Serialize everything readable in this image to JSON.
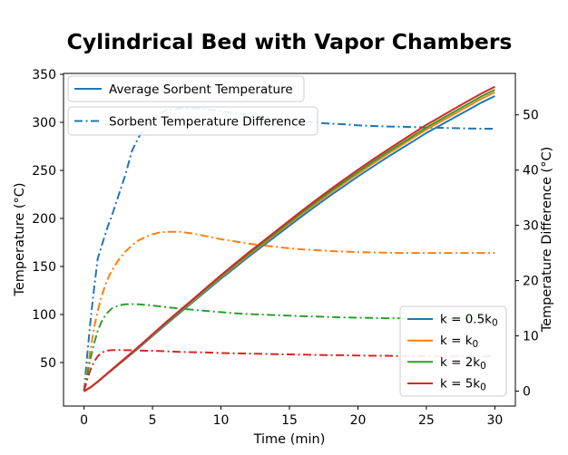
{
  "chart_data": {
    "type": "line",
    "title": "Cylindrical Bed with Vapor Chambers",
    "xlabel": "Time (min)",
    "ylabel_left": "Temperature (°C)",
    "ylabel_right": "Temperature Difference (°C)",
    "xlim": [
      -1.5,
      31.5
    ],
    "ylim_left": [
      4.7,
      350.9
    ],
    "ylim_right": [
      -2.7,
      57.5
    ],
    "x_ticks": [
      0,
      5,
      10,
      15,
      20,
      25,
      30
    ],
    "y_ticks_left": [
      50,
      100,
      150,
      200,
      250,
      300,
      350
    ],
    "y_ticks_right": [
      0,
      10,
      20,
      30,
      40,
      50
    ],
    "grid": false,
    "legend_position_top": "upper left",
    "legend_position_bottom": "lower right",
    "colors": {
      "blue": "#1f77b4",
      "orange": "#ff7f0e",
      "green": "#2ca02c",
      "red": "#d62728"
    },
    "legend_top": [
      {
        "label": "Average Sorbent Temperature",
        "style": "solid",
        "color_key": "blue"
      },
      {
        "label": "Sorbent Temperature Difference",
        "style": "dashdot",
        "color_key": "blue"
      }
    ],
    "legend_bottom": [
      {
        "pre": "k = 0.5k",
        "sub": "0",
        "color_key": "blue"
      },
      {
        "pre": "k = k",
        "sub": "0",
        "color_key": "orange"
      },
      {
        "pre": "k = 2k",
        "sub": "0",
        "color_key": "green"
      },
      {
        "pre": "k = 5k",
        "sub": "0",
        "color_key": "red"
      }
    ],
    "series": [
      {
        "id": "diff-k0p5",
        "name": "Sorbent Temperature Difference (k = 0.5k0)",
        "axis": "right",
        "style": "dashdot",
        "color_key": "blue",
        "t": [
          0,
          0.25,
          0.5,
          0.75,
          1,
          1.25,
          1.5,
          1.75,
          2,
          2.5,
          3,
          3.5,
          4,
          4.5,
          5,
          5.5,
          6,
          7,
          8,
          9,
          10,
          11,
          12,
          13,
          14,
          15,
          16,
          17,
          18,
          19,
          20,
          21,
          22,
          23,
          24,
          25,
          26,
          27,
          28,
          29,
          30
        ],
        "values": [
          0,
          7,
          13.5,
          19,
          24,
          26,
          28,
          29.9,
          31.5,
          35.3,
          39,
          43.5,
          46,
          48,
          49.3,
          50.2,
          50.8,
          51.2,
          51.2,
          51,
          50.7,
          50.3,
          50,
          49.6,
          49.3,
          49,
          48.8,
          48.6,
          48.4,
          48.3,
          48.1,
          48,
          47.9,
          47.85,
          47.8,
          47.7,
          47.65,
          47.6,
          47.55,
          47.5,
          47.5
        ]
      },
      {
        "id": "diff-k1",
        "name": "Sorbent Temperature Difference (k = k0)",
        "axis": "right",
        "style": "dashdot",
        "color_key": "orange",
        "t": [
          0,
          0.25,
          0.5,
          0.75,
          1,
          1.25,
          1.5,
          1.75,
          2,
          2.5,
          3,
          3.5,
          4,
          4.5,
          5,
          5.5,
          6,
          7,
          8,
          9,
          10,
          11,
          12,
          13,
          14,
          15,
          16,
          17,
          18,
          19,
          20,
          21,
          22,
          23,
          24,
          25,
          26,
          27,
          28,
          29,
          30
        ],
        "values": [
          0,
          4,
          8,
          11.7,
          14.5,
          16.9,
          18.8,
          20.4,
          21.7,
          23.7,
          25.2,
          26.4,
          27.3,
          27.9,
          28.4,
          28.7,
          28.85,
          28.85,
          28.5,
          28,
          27.5,
          27.1,
          26.7,
          26.4,
          26.1,
          25.85,
          25.65,
          25.5,
          25.35,
          25.25,
          25.15,
          25.1,
          25.05,
          25,
          25,
          25,
          25,
          25,
          25,
          25,
          25
        ]
      },
      {
        "id": "diff-k2",
        "name": "Sorbent Temperature Difference (k = 2k0)",
        "axis": "right",
        "style": "dashdot",
        "color_key": "green",
        "t": [
          0,
          0.25,
          0.5,
          0.75,
          1,
          1.25,
          1.5,
          1.75,
          2,
          2.5,
          3,
          3.5,
          4,
          4.5,
          5,
          5.5,
          6,
          7,
          8,
          9,
          10,
          11,
          12,
          13,
          14,
          15,
          16,
          17,
          18,
          19,
          20,
          21,
          22,
          23,
          24,
          25,
          26,
          27,
          28,
          29,
          30
        ],
        "values": [
          0,
          3.2,
          6.2,
          8.8,
          10.9,
          12.4,
          13.5,
          14.3,
          14.9,
          15.5,
          15.7,
          15.75,
          15.7,
          15.6,
          15.5,
          15.35,
          15.2,
          14.95,
          14.7,
          14.5,
          14.3,
          14.1,
          13.95,
          13.85,
          13.75,
          13.65,
          13.55,
          13.5,
          13.4,
          13.35,
          13.3,
          13.25,
          13.2,
          13.2,
          13.15,
          13.15,
          13.1,
          13.1,
          13.1,
          13.1,
          13.1
        ]
      },
      {
        "id": "diff-k5",
        "name": "Sorbent Temperature Difference (k = 5k0)",
        "axis": "right",
        "style": "dashdot",
        "color_key": "red",
        "t": [
          0,
          0.25,
          0.5,
          0.75,
          1,
          1.25,
          1.5,
          1.75,
          2,
          2.5,
          3,
          3.5,
          4,
          4.5,
          5,
          5.5,
          6,
          7,
          8,
          9,
          10,
          11,
          12,
          13,
          14,
          15,
          16,
          17,
          18,
          19,
          20,
          21,
          22,
          23,
          24,
          25,
          26,
          27,
          28,
          29,
          30
        ],
        "values": [
          0,
          2.3,
          4.1,
          5.4,
          6.3,
          6.9,
          7.2,
          7.35,
          7.4,
          7.45,
          7.4,
          7.4,
          7.35,
          7.3,
          7.3,
          7.25,
          7.2,
          7.1,
          7.05,
          7,
          6.9,
          6.85,
          6.8,
          6.75,
          6.7,
          6.65,
          6.6,
          6.55,
          6.5,
          6.5,
          6.45,
          6.4,
          6.4,
          6.35,
          6.35,
          6.3,
          6.3,
          6.3,
          6.3,
          6.3,
          6.3
        ]
      },
      {
        "id": "avg-k0p5",
        "name": "Average Sorbent Temperature (k = 0.5k0)",
        "axis": "left",
        "style": "solid",
        "color_key": "blue",
        "t": [
          0,
          0.5,
          1,
          1.5,
          2,
          3,
          4,
          5,
          6,
          7,
          8,
          9,
          10,
          11,
          12,
          13,
          14,
          15,
          16,
          17,
          18,
          19,
          20,
          21,
          22,
          23,
          24,
          25,
          26,
          27,
          28,
          29,
          30
        ],
        "values": [
          20,
          24.4,
          29.9,
          35.8,
          41.7,
          53.5,
          65.3,
          77.6,
          89.9,
          101.8,
          113.6,
          125.4,
          137.2,
          148.5,
          159.9,
          170.7,
          181.5,
          192.4,
          203.2,
          213.6,
          223.9,
          233.7,
          243.6,
          253,
          262.3,
          271.2,
          280,
          288.9,
          296.8,
          304.7,
          312.5,
          320.4,
          327.3
        ]
      },
      {
        "id": "avg-k1",
        "name": "Average Sorbent Temperature (k = k0)",
        "axis": "left",
        "style": "solid",
        "color_key": "orange",
        "t": [
          0,
          0.5,
          1,
          1.5,
          2,
          3,
          4,
          5,
          6,
          7,
          8,
          9,
          10,
          11,
          12,
          13,
          14,
          15,
          16,
          17,
          18,
          19,
          20,
          21,
          22,
          23,
          24,
          25,
          26,
          27,
          28,
          29,
          30
        ],
        "values": [
          20,
          24.5,
          30,
          36,
          42,
          53.9,
          65.9,
          78.4,
          90.9,
          102.8,
          114.8,
          126.8,
          138.8,
          150.2,
          161.7,
          172.7,
          183.7,
          194.7,
          205.6,
          216.1,
          226.6,
          236.6,
          246.5,
          256,
          265.5,
          274.5,
          283.5,
          292.5,
          300.4,
          308.4,
          316.4,
          324.4,
          331.4
        ]
      },
      {
        "id": "avg-k2",
        "name": "Average Sorbent Temperature (k = 2k0)",
        "axis": "left",
        "style": "solid",
        "color_key": "green",
        "t": [
          0,
          0.5,
          1,
          1.5,
          2,
          3,
          4,
          5,
          6,
          7,
          8,
          9,
          10,
          11,
          12,
          13,
          14,
          15,
          16,
          17,
          18,
          19,
          20,
          21,
          22,
          23,
          24,
          25,
          26,
          27,
          28,
          29,
          30
        ],
        "values": [
          20,
          24.5,
          30.1,
          36.1,
          42.1,
          54.2,
          66.3,
          78.9,
          91.4,
          103.5,
          115.6,
          127.6,
          139.7,
          151.3,
          162.9,
          173.9,
          185,
          196.1,
          207.1,
          217.7,
          228.2,
          238.3,
          248.4,
          257.9,
          267.5,
          276.5,
          285.6,
          294.6,
          302.7,
          310.7,
          318.8,
          326.8,
          333.9
        ]
      },
      {
        "id": "avg-k5",
        "name": "Average Sorbent Temperature (k = 5k0)",
        "axis": "left",
        "style": "solid",
        "color_key": "red",
        "t": [
          0,
          0.5,
          1,
          1.5,
          2,
          3,
          4,
          5,
          6,
          7,
          8,
          9,
          10,
          11,
          12,
          13,
          14,
          15,
          16,
          17,
          18,
          19,
          20,
          21,
          22,
          23,
          24,
          25,
          26,
          27,
          28,
          29,
          30
        ],
        "values": [
          20,
          24.6,
          30.2,
          36.3,
          42.4,
          54.5,
          66.7,
          79.4,
          92.1,
          104.3,
          116.5,
          128.7,
          140.9,
          152.6,
          164.3,
          175.4,
          186.6,
          197.8,
          209,
          219.7,
          230.3,
          240.5,
          250.6,
          260.3,
          269.9,
          279.1,
          288.3,
          297.4,
          305.5,
          313.7,
          321.8,
          329.8,
          337
        ]
      }
    ]
  }
}
